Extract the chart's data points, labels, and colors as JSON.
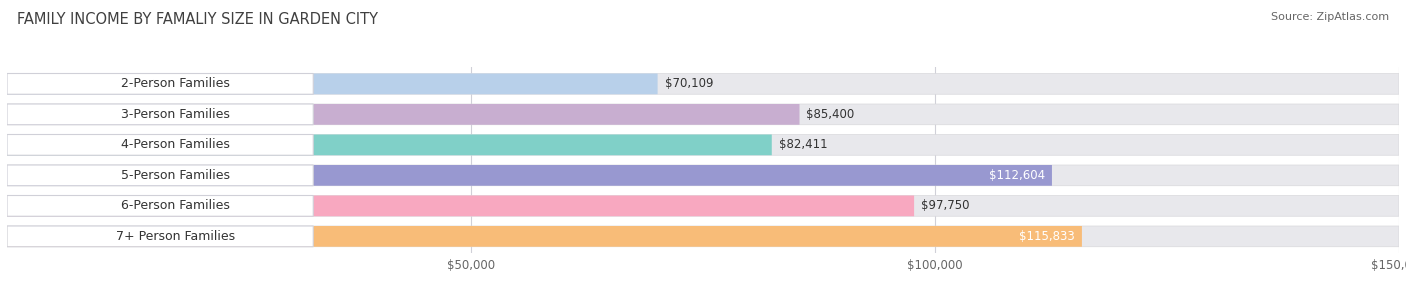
{
  "title": "FAMILY INCOME BY FAMALIY SIZE IN GARDEN CITY",
  "source": "Source: ZipAtlas.com",
  "categories": [
    "2-Person Families",
    "3-Person Families",
    "4-Person Families",
    "5-Person Families",
    "6-Person Families",
    "7+ Person Families"
  ],
  "values": [
    70109,
    85400,
    82411,
    112604,
    97750,
    115833
  ],
  "bar_colors": [
    "#b8d0ea",
    "#c8aed0",
    "#80d0c8",
    "#9898d0",
    "#f8a8c0",
    "#f8bc78"
  ],
  "label_colors": [
    "#444444",
    "#444444",
    "#444444",
    "#ffffff",
    "#444444",
    "#ffffff"
  ],
  "xlim": [
    0,
    150000
  ],
  "background_color": "#ffffff",
  "bar_bg_color": "#e8e8ec",
  "title_fontsize": 10.5,
  "source_fontsize": 8,
  "label_fontsize": 9,
  "value_fontsize": 8.5,
  "bar_height": 0.68
}
